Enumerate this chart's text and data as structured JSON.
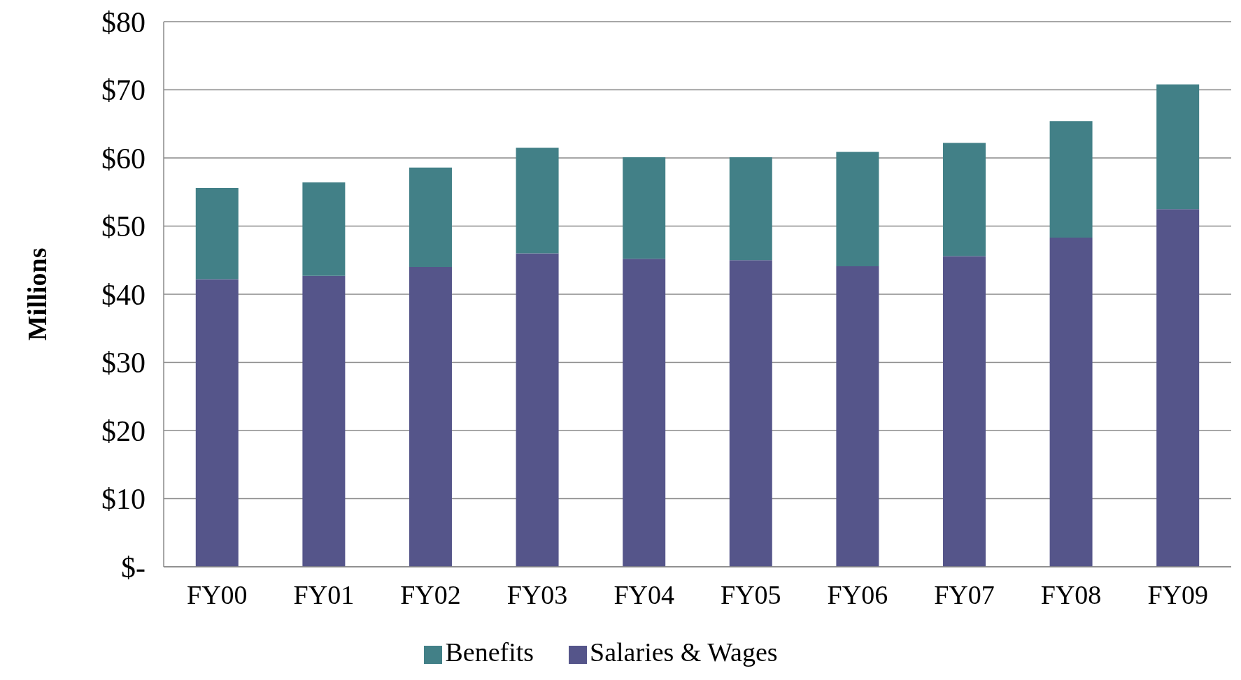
{
  "chart_data": {
    "type": "bar",
    "stacked": true,
    "ylabel": "Millions",
    "categories": [
      "FY00",
      "FY01",
      "FY02",
      "FY03",
      "FY04",
      "FY05",
      "FY06",
      "FY07",
      "FY08",
      "FY09"
    ],
    "series": [
      {
        "name": "Salaries & Wages",
        "color": "#55558a",
        "values": [
          42.2,
          42.7,
          44.0,
          46.0,
          45.2,
          45.0,
          44.1,
          45.6,
          48.3,
          52.5
        ]
      },
      {
        "name": "Benefits",
        "color": "#428087",
        "values": [
          13.4,
          13.7,
          14.6,
          15.5,
          14.9,
          15.1,
          16.8,
          16.6,
          17.1,
          18.3
        ]
      }
    ],
    "ylim": [
      0,
      80
    ],
    "yticks": [
      {
        "value": 0,
        "label": "$-"
      },
      {
        "value": 10,
        "label": "$10"
      },
      {
        "value": 20,
        "label": "$20"
      },
      {
        "value": 30,
        "label": "$30"
      },
      {
        "value": 40,
        "label": "$40"
      },
      {
        "value": 50,
        "label": "$50"
      },
      {
        "value": 60,
        "label": "$60"
      },
      {
        "value": 70,
        "label": "$70"
      },
      {
        "value": 80,
        "label": "$80"
      }
    ],
    "grid": "y",
    "legend": "bottom"
  }
}
